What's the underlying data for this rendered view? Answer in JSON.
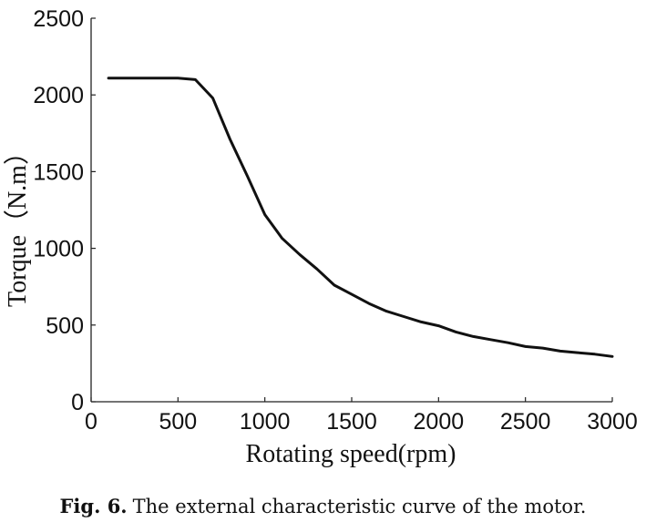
{
  "chart_data": {
    "type": "line",
    "title": "",
    "xlabel": "Rotating speed(rpm)",
    "ylabel": "Torque（N.m）",
    "xlim": [
      0,
      3000
    ],
    "ylim": [
      0,
      2500
    ],
    "xticks": [
      "0",
      "500",
      "1000",
      "1500",
      "2000",
      "2500",
      "3000"
    ],
    "yticks": [
      "0",
      "500",
      "1000",
      "1500",
      "2000",
      "2500"
    ],
    "grid": false,
    "series": [
      {
        "x": [
          100,
          200,
          300,
          400,
          500,
          600,
          700,
          800,
          900,
          1000,
          1100,
          1200,
          1300,
          1400,
          1500,
          1600,
          1700,
          1800,
          1900,
          2000,
          2100,
          2200,
          2300,
          2400,
          2500,
          2600,
          2700,
          2800,
          2900,
          3000
        ],
        "y": [
          2110,
          2110,
          2110,
          2110,
          2110,
          2100,
          1980,
          1710,
          1470,
          1220,
          1065,
          960,
          865,
          760,
          700,
          640,
          590,
          555,
          520,
          495,
          455,
          425,
          405,
          385,
          360,
          350,
          330,
          320,
          310,
          295
        ],
        "color": "#111111"
      }
    ]
  },
  "caption": {
    "label": "Fig. 6.",
    "text": "The external characteristic curve of the motor."
  }
}
